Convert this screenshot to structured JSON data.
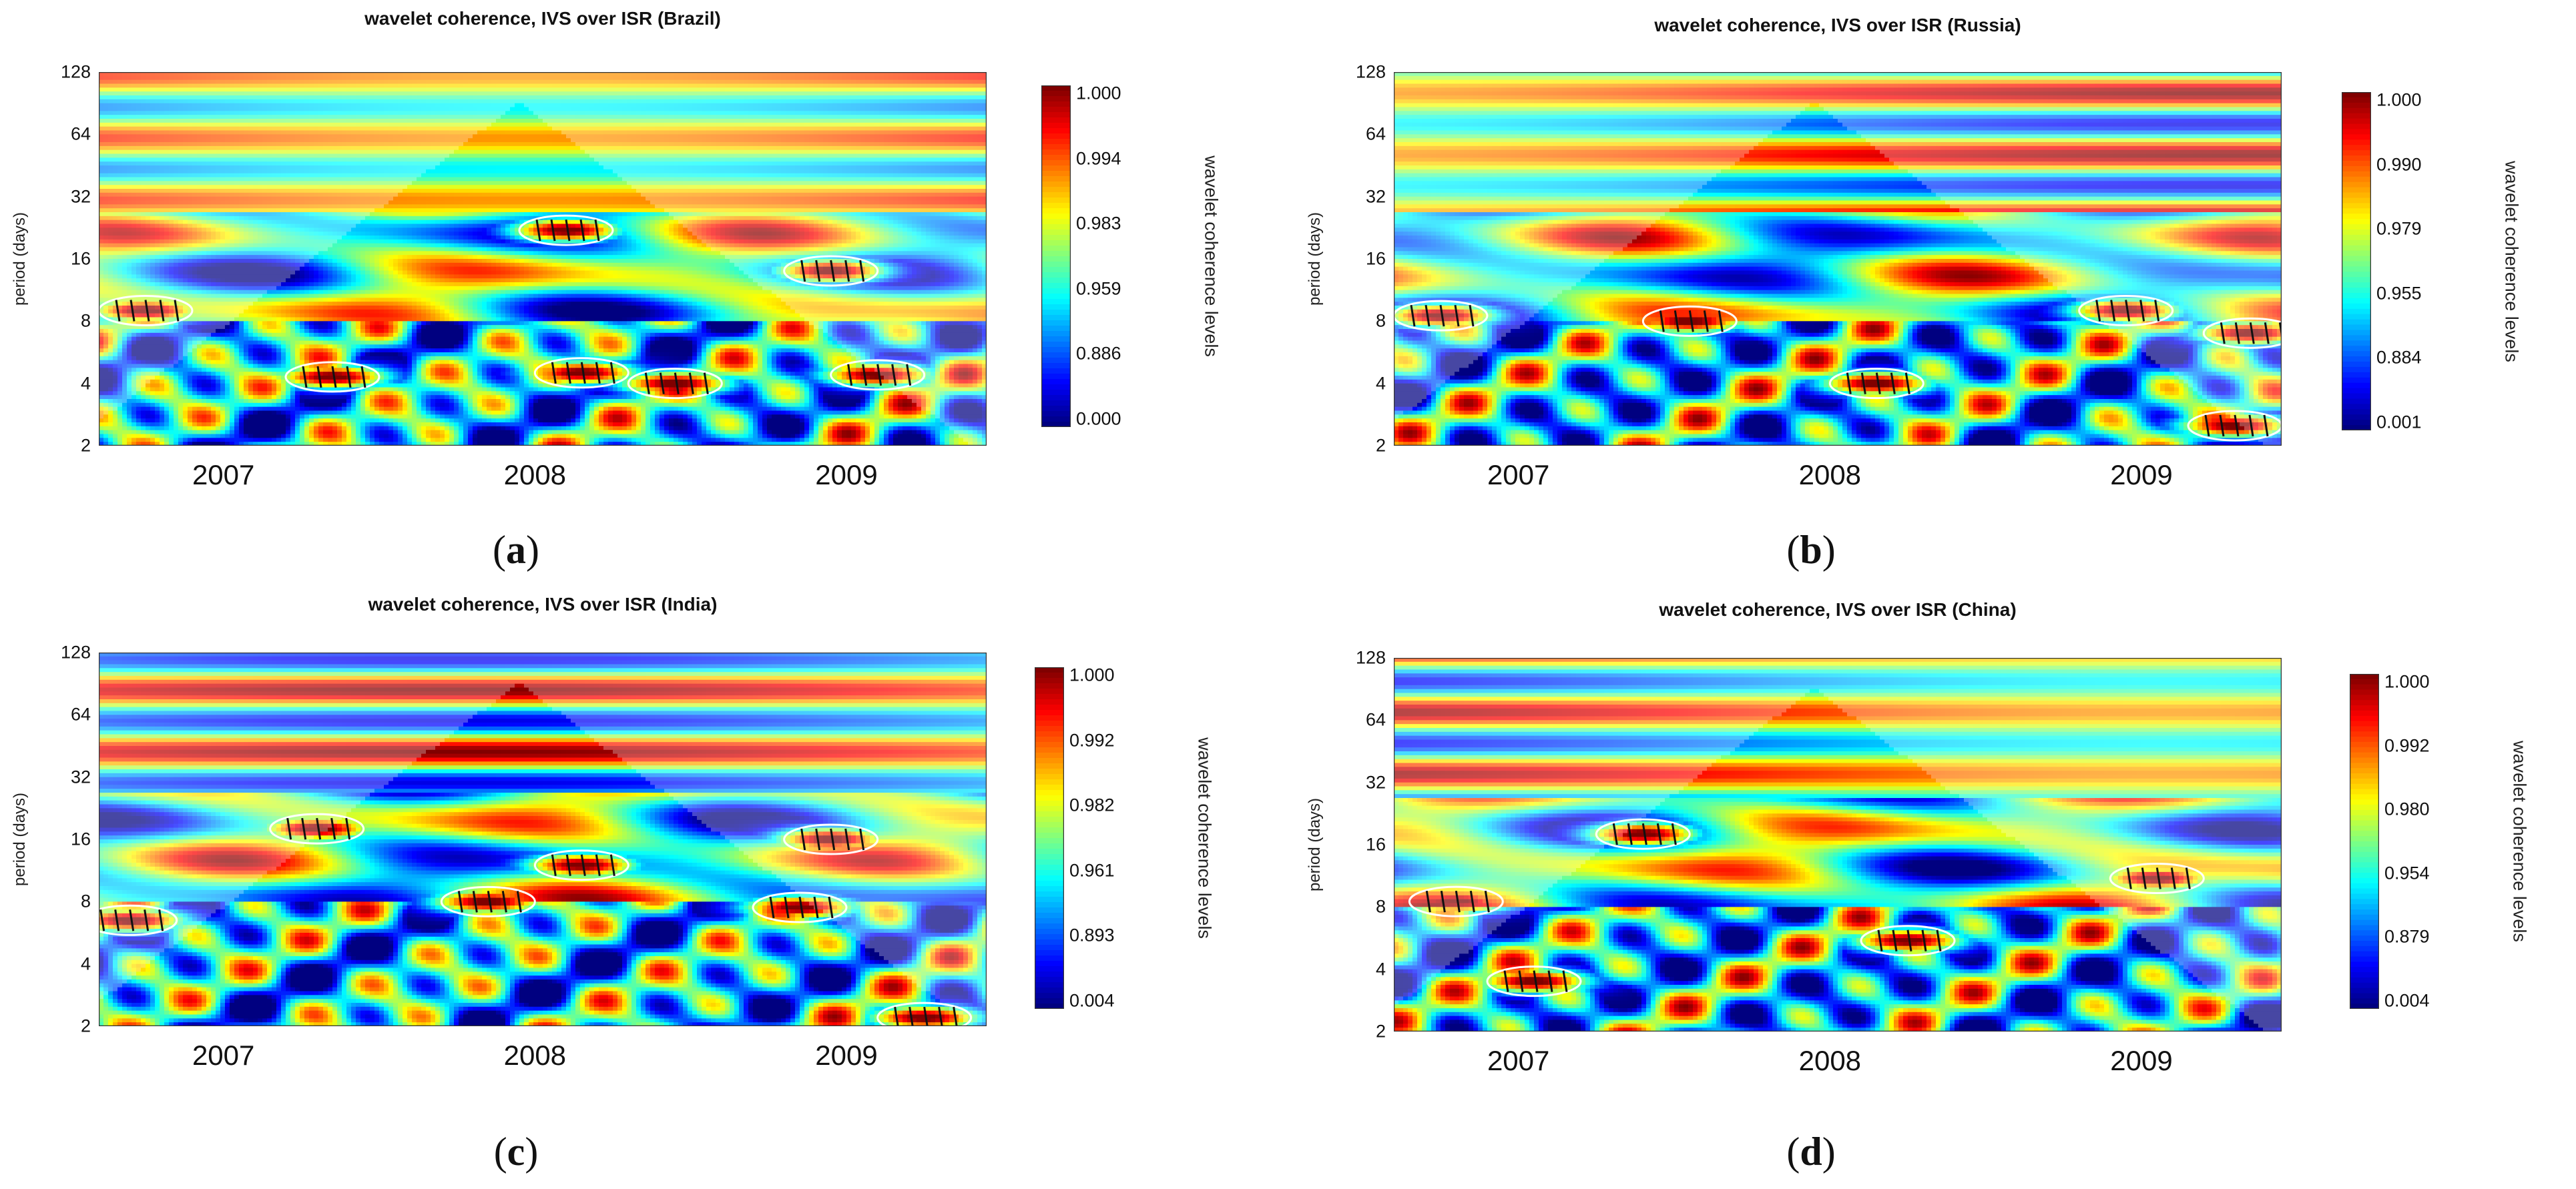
{
  "chart_data": [
    {
      "type": "heatmap",
      "title": "wavelet coherence, IVS over ISR (Brazil)",
      "ylabel": "period (days)",
      "colorbar_label": "wavelet coherence levels",
      "y_ticks": [
        "2",
        "4",
        "8",
        "16",
        "32",
        "64",
        "128"
      ],
      "x_ticks": [
        "2007",
        "2008",
        "2009"
      ],
      "x_tick_values": [
        2007.0,
        2008.0,
        2009.0
      ],
      "x_range": [
        2006.6,
        2009.45
      ],
      "y_range_days": [
        2,
        128
      ],
      "colorbar_ticks": [
        "1.000",
        "0.994",
        "0.983",
        "0.959",
        "0.886",
        "0.000"
      ],
      "panel_label": "a",
      "high_coherence_regions": [
        {
          "t": 2006.75,
          "period": 9
        },
        {
          "t": 2007.35,
          "period": 4.3
        },
        {
          "t": 2008.1,
          "period": 22
        },
        {
          "t": 2008.15,
          "period": 4.5
        },
        {
          "t": 2008.45,
          "period": 4
        },
        {
          "t": 2008.95,
          "period": 14
        },
        {
          "t": 2009.1,
          "period": 4.4
        }
      ]
    },
    {
      "type": "heatmap",
      "title": "wavelet coherence, IVS over ISR (Russia)",
      "ylabel": "period (days)",
      "colorbar_label": "wavelet coherence levels",
      "y_ticks": [
        "2",
        "4",
        "8",
        "16",
        "32",
        "64",
        "128"
      ],
      "x_ticks": [
        "2007",
        "2008",
        "2009"
      ],
      "x_tick_values": [
        2007.0,
        2008.0,
        2009.0
      ],
      "x_range": [
        2006.6,
        2009.45
      ],
      "y_range_days": [
        2,
        128
      ],
      "colorbar_ticks": [
        "1.000",
        "0.990",
        "0.979",
        "0.955",
        "0.884",
        "0.001"
      ],
      "panel_label": "b",
      "high_coherence_regions": [
        {
          "t": 2006.75,
          "period": 8.5
        },
        {
          "t": 2007.55,
          "period": 8
        },
        {
          "t": 2008.15,
          "period": 4
        },
        {
          "t": 2008.95,
          "period": 9
        },
        {
          "t": 2009.3,
          "period": 2.5
        },
        {
          "t": 2009.35,
          "period": 7
        }
      ]
    },
    {
      "type": "heatmap",
      "title": "wavelet coherence, IVS over ISR (India)",
      "ylabel": "period (days)",
      "colorbar_label": "wavelet coherence levels",
      "y_ticks": [
        "2",
        "4",
        "8",
        "16",
        "32",
        "64",
        "128"
      ],
      "x_ticks": [
        "2007",
        "2008",
        "2009"
      ],
      "x_tick_values": [
        2007.0,
        2008.0,
        2009.0
      ],
      "x_range": [
        2006.6,
        2009.45
      ],
      "y_range_days": [
        2,
        128
      ],
      "colorbar_ticks": [
        "1.000",
        "0.992",
        "0.982",
        "0.961",
        "0.893",
        "0.004"
      ],
      "panel_label": "c",
      "high_coherence_regions": [
        {
          "t": 2007.3,
          "period": 18
        },
        {
          "t": 2006.7,
          "period": 6.5
        },
        {
          "t": 2008.15,
          "period": 12
        },
        {
          "t": 2007.85,
          "period": 8
        },
        {
          "t": 2008.95,
          "period": 16
        },
        {
          "t": 2008.85,
          "period": 7.5
        },
        {
          "t": 2009.25,
          "period": 2.2
        }
      ]
    },
    {
      "type": "heatmap",
      "title": "wavelet coherence, IVS over ISR (China)",
      "ylabel": "period (days)",
      "colorbar_label": "wavelet coherence levels",
      "y_ticks": [
        "2",
        "4",
        "8",
        "16",
        "32",
        "64",
        "128"
      ],
      "x_ticks": [
        "2007",
        "2008",
        "2009"
      ],
      "x_tick_values": [
        2007.0,
        2008.0,
        2009.0
      ],
      "x_range": [
        2006.6,
        2009.45
      ],
      "y_range_days": [
        2,
        128
      ],
      "colorbar_ticks": [
        "1.000",
        "0.992",
        "0.980",
        "0.954",
        "0.879",
        "0.004"
      ],
      "panel_label": "d",
      "high_coherence_regions": [
        {
          "t": 2007.4,
          "period": 18
        },
        {
          "t": 2006.8,
          "period": 8.5
        },
        {
          "t": 2007.05,
          "period": 3.5
        },
        {
          "t": 2008.25,
          "period": 5.5
        },
        {
          "t": 2009.05,
          "period": 11
        }
      ]
    }
  ]
}
